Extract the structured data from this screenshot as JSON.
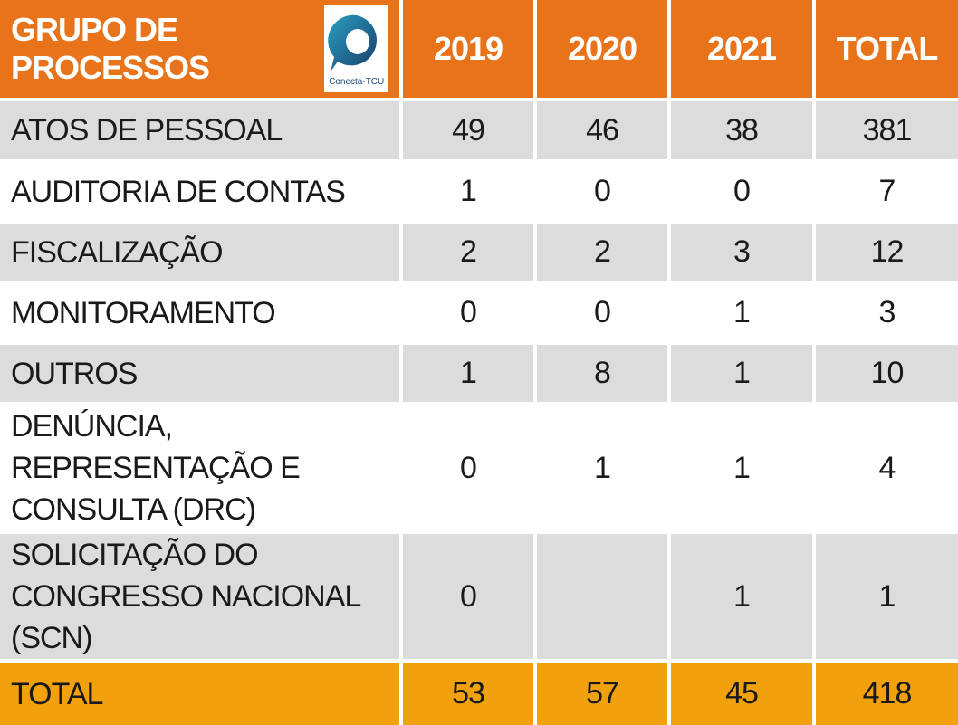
{
  "header": {
    "group_label": "GRUPO DE PROCESSOS",
    "logo_caption": "Conecta-TCU",
    "columns": [
      "2019",
      "2020",
      "2021",
      "TOTAL"
    ]
  },
  "rows": [
    {
      "label": "ATOS DE PESSOAL",
      "values": [
        "49",
        "46",
        "38",
        "381"
      ]
    },
    {
      "label": "AUDITORIA DE CONTAS",
      "values": [
        "1",
        "0",
        "0",
        "7"
      ]
    },
    {
      "label": "FISCALIZAÇÃO",
      "values": [
        "2",
        "2",
        "3",
        "12"
      ]
    },
    {
      "label": "MONITORAMENTO",
      "values": [
        "0",
        "0",
        "1",
        "3"
      ]
    },
    {
      "label": "OUTROS",
      "values": [
        "1",
        "8",
        "1",
        "10"
      ]
    },
    {
      "label": "DENÚNCIA, REPRESENTAÇÃO E CONSULTA (DRC)",
      "values": [
        "0",
        "1",
        "1",
        "4"
      ]
    },
    {
      "label": "SOLICITAÇÃO DO CONGRESSO NACIONAL (SCN)",
      "values": [
        "0",
        "",
        "1",
        "1"
      ]
    }
  ],
  "total": {
    "label": "TOTAL",
    "values": [
      "53",
      "57",
      "45",
      "418"
    ]
  },
  "colors": {
    "header_bg": "#e8731a",
    "row_gray": "#dcdcdc",
    "total_bg": "#f0a10c",
    "logo_blue": "#1d4a7a"
  }
}
